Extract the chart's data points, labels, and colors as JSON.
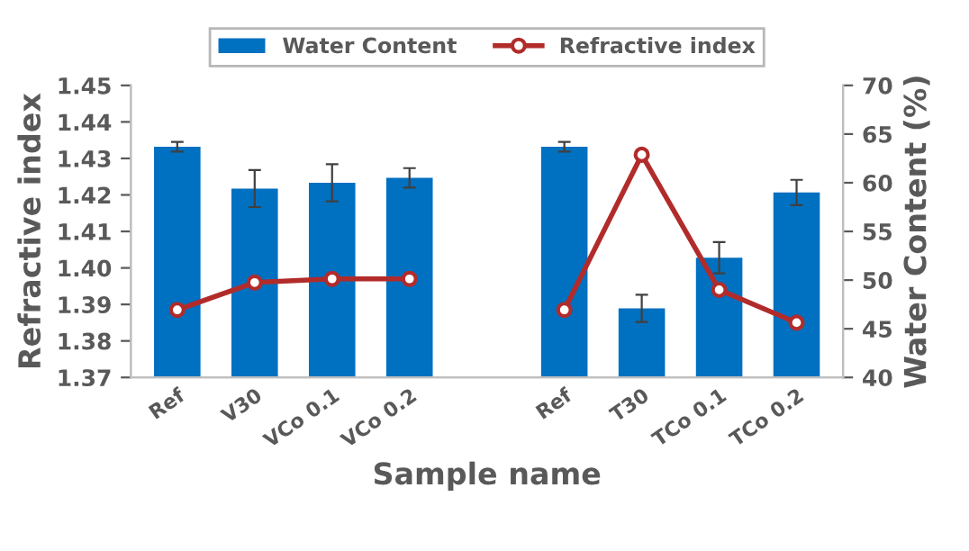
{
  "chart_data": {
    "type": "bar",
    "xlabel": "Sample name",
    "ylabel": "Refractive index",
    "y2label": "Water Content (%)",
    "categories": [
      "Ref",
      "V30",
      "VCo 0.1",
      "VCo 0.2",
      null,
      "Ref",
      "T30",
      "TCo 0.1",
      "TCo 0.2"
    ],
    "series": [
      {
        "name": "Water Content",
        "axis": "y2",
        "color": "#0070c0",
        "values": [
          63.7,
          59.4,
          60.0,
          60.5,
          null,
          63.7,
          47.1,
          52.3,
          59.0
        ],
        "errors": [
          0.5,
          1.9,
          1.9,
          1.0,
          null,
          0.5,
          1.4,
          1.6,
          1.3
        ]
      },
      {
        "name": "Refractive index",
        "type": "line",
        "axis": "y",
        "color": "#b22b2b",
        "marker": "circle",
        "values": [
          1.3885,
          1.396,
          1.397,
          1.397,
          null,
          1.3885,
          1.431,
          1.394,
          1.385
        ]
      }
    ],
    "ylim": [
      1.37,
      1.45
    ],
    "yticks": [
      {
        "value": 1.37,
        "label": "1.37"
      },
      {
        "value": 1.38,
        "label": "1.38"
      },
      {
        "value": 1.39,
        "label": "1.39"
      },
      {
        "value": 1.4,
        "label": "1.40"
      },
      {
        "value": 1.41,
        "label": "1.41"
      },
      {
        "value": 1.42,
        "label": "1.42"
      },
      {
        "value": 1.43,
        "label": "1.43"
      },
      {
        "value": 1.44,
        "label": "1.44"
      },
      {
        "value": 1.45,
        "label": "1.45"
      }
    ],
    "y2lim": [
      40,
      70
    ],
    "y2ticks": [
      40,
      45,
      50,
      55,
      60,
      65,
      70
    ],
    "grid": false,
    "legend": "top"
  }
}
